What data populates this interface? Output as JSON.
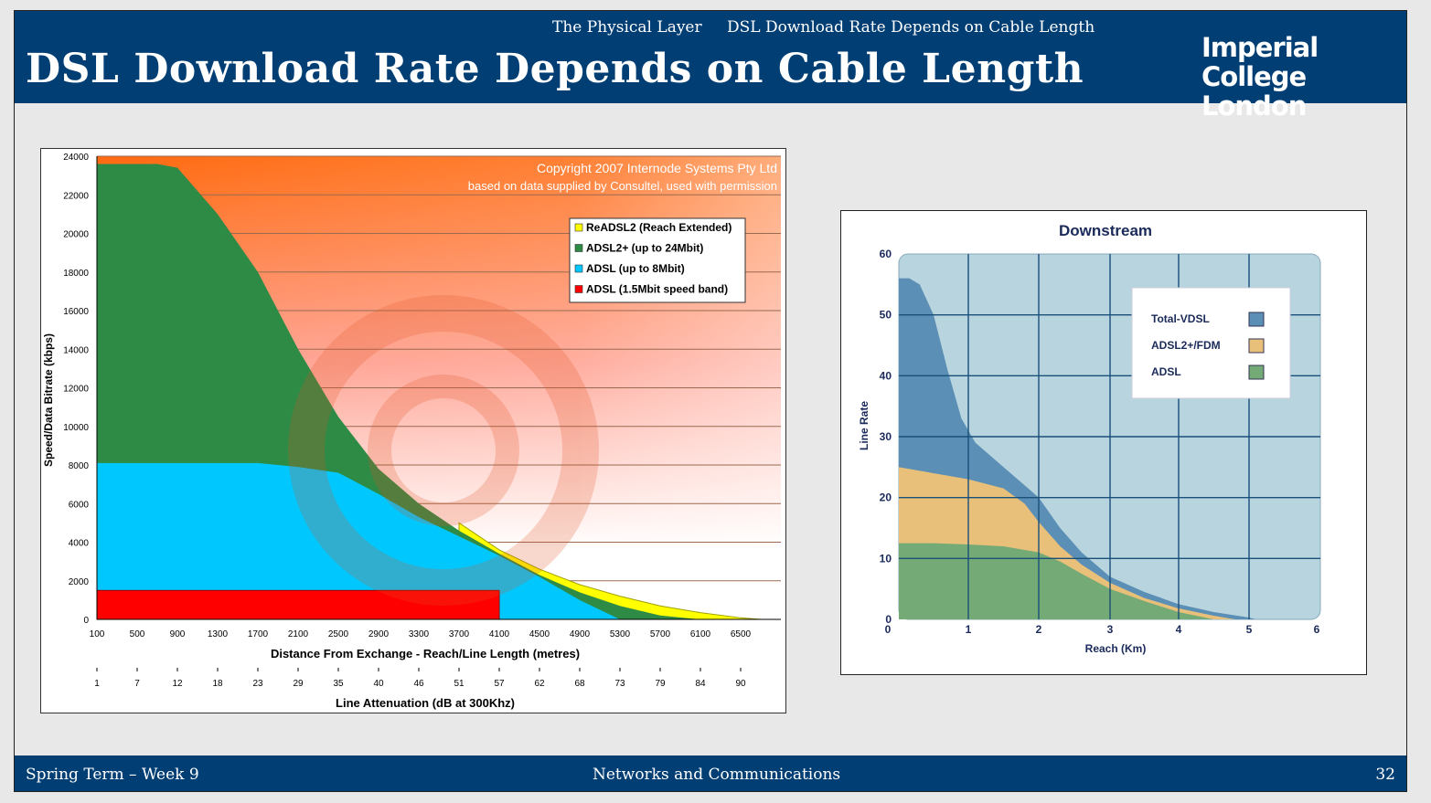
{
  "header": {
    "section": "The Physical Layer",
    "subsection": "DSL Download Rate Depends on Cable Length",
    "title": "DSL Download Rate Depends on Cable Length",
    "logo_line1": "Imperial College",
    "logo_line2": "London"
  },
  "footer": {
    "left": "Spring Term – Week 9",
    "center": "Networks and Communications",
    "page": "32"
  },
  "colors": {
    "bar": "#003e74",
    "readsl2": "#ffff00",
    "adsl2plus": "#2e8b46",
    "adsl": "#00c8ff",
    "adsl_1_5": "#ff0000",
    "vdsl": "#5b8fb5",
    "adsl2_fdm": "#e8c07a",
    "adsl_green": "#74aa76"
  },
  "chart_data": [
    {
      "type": "area",
      "title": "",
      "copyright_line1": "Copyright 2007 Internode Systems Pty Ltd",
      "copyright_line2": "based on data supplied by Consultel, used with permission",
      "ylabel": "Speed/Data Bitrate (kbps)",
      "xlabel": "Distance From Exchange - Reach/Line Length (metres)",
      "x2label": "Line Attenuation (dB at 300Khz)",
      "ylim": [
        0,
        24000
      ],
      "xlim": [
        100,
        6700
      ],
      "yticks": [
        "0",
        "2000",
        "4000",
        "6000",
        "8000",
        "10000",
        "12000",
        "14000",
        "16000",
        "18000",
        "20000",
        "22000",
        "24000"
      ],
      "xticks": [
        "100",
        "500",
        "900",
        "1300",
        "1700",
        "2100",
        "2500",
        "2900",
        "3300",
        "3700",
        "4100",
        "4500",
        "4900",
        "5300",
        "5700",
        "6100",
        "6500"
      ],
      "x2ticks": [
        "1",
        "7",
        "12",
        "18",
        "23",
        "29",
        "35",
        "40",
        "46",
        "51",
        "57",
        "62",
        "68",
        "73",
        "79",
        "84",
        "90"
      ],
      "legend": "top-right",
      "series": [
        {
          "name": "ReADSL2 (Reach Extended)",
          "x": [
            3700,
            4100,
            4500,
            4900,
            5300,
            5700,
            6100,
            6500,
            6700
          ],
          "y": [
            5000,
            3600,
            2600,
            1800,
            1200,
            700,
            350,
            80,
            0
          ]
        },
        {
          "name": "ADSL2+ (up to 24Mbit)",
          "x": [
            100,
            500,
            700,
            900,
            1300,
            1700,
            2100,
            2500,
            2900,
            3300,
            3700,
            4100,
            4500,
            4900,
            5300,
            5700,
            6100
          ],
          "y": [
            23600,
            23600,
            23600,
            23400,
            21000,
            18000,
            14000,
            10500,
            7800,
            6000,
            4600,
            3400,
            2300,
            1400,
            700,
            200,
            0
          ]
        },
        {
          "name": "ADSL (up to 8Mbit)",
          "x": [
            100,
            500,
            900,
            1300,
            1700,
            2100,
            2500,
            2900,
            3300,
            3700,
            4100,
            4500,
            4900,
            5300
          ],
          "y": [
            8100,
            8100,
            8100,
            8100,
            8100,
            7900,
            7600,
            6500,
            5300,
            4300,
            3300,
            2200,
            1000,
            0
          ]
        },
        {
          "name": "ADSL (1.5Mbit speed band)",
          "x": [
            100,
            4100
          ],
          "y": [
            1500,
            1500
          ]
        }
      ]
    },
    {
      "type": "area",
      "title": "Downstream",
      "xlabel": "Reach (Km)",
      "ylabel": "Line Rate",
      "xlim": [
        0,
        6
      ],
      "ylim": [
        0,
        60
      ],
      "xticks": [
        "0",
        "1",
        "2",
        "3",
        "4",
        "5",
        "6"
      ],
      "yticks": [
        "0",
        "10",
        "20",
        "30",
        "40",
        "50",
        "60"
      ],
      "grid": true,
      "legend": "top-right",
      "series": [
        {
          "name": "Total-VDSL",
          "x": [
            0,
            0.15,
            0.3,
            0.5,
            0.7,
            0.9,
            1.1,
            1.4,
            1.7,
            2.0,
            2.3,
            2.6,
            3.0,
            3.5,
            4.0,
            4.5,
            5.0,
            5.1
          ],
          "y": [
            56,
            56,
            55,
            50,
            41,
            33,
            29,
            26,
            23,
            20,
            15,
            11,
            7,
            4.5,
            2.5,
            1.2,
            0.3,
            0
          ]
        },
        {
          "name": "ADSL2+/FDM",
          "x": [
            0,
            0.5,
            1.0,
            1.5,
            1.8,
            2.0,
            2.3,
            2.6,
            3.0,
            3.5,
            4.0,
            4.5,
            4.8
          ],
          "y": [
            25,
            24,
            23,
            21.5,
            19,
            16,
            12,
            9,
            6,
            3.5,
            1.8,
            0.6,
            0
          ]
        },
        {
          "name": "ADSL",
          "x": [
            0,
            0.5,
            1.0,
            1.5,
            2.0,
            2.3,
            2.6,
            3.0,
            3.5,
            4.0,
            4.5
          ],
          "y": [
            12.5,
            12.5,
            12.3,
            12,
            11,
            9.5,
            7.5,
            5,
            3,
            1.2,
            0
          ]
        }
      ]
    }
  ]
}
